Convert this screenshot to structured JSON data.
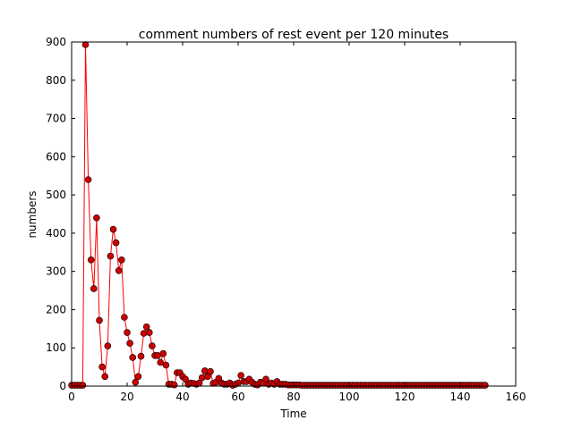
{
  "chart_data": {
    "type": "line",
    "title": "comment numbers of rest event per 120 minutes",
    "xlabel": "Time",
    "ylabel": "numbers",
    "xlim": [
      0,
      160
    ],
    "ylim": [
      0,
      900
    ],
    "xticks": [
      0,
      20,
      40,
      60,
      80,
      100,
      120,
      140,
      160
    ],
    "yticks": [
      0,
      100,
      200,
      300,
      400,
      500,
      600,
      700,
      800,
      900
    ],
    "grid": false,
    "line_color": "#ff0000",
    "marker_color": "#cc0000",
    "marker_edge_color": "#000000",
    "series": [
      {
        "x": [
          0,
          1,
          2,
          3,
          4,
          5,
          6,
          7,
          8,
          9,
          10,
          11,
          12,
          13,
          14,
          15,
          16,
          17,
          18,
          19,
          20,
          21,
          22,
          23,
          24,
          25,
          26,
          27,
          28,
          29,
          30,
          31,
          32,
          33,
          34,
          35,
          36,
          37,
          38,
          39,
          40,
          41,
          42,
          43,
          44,
          45,
          46,
          47,
          48,
          49,
          50,
          51,
          52,
          53,
          54,
          55,
          56,
          57,
          58,
          59,
          60,
          61,
          62,
          63,
          64,
          65,
          66,
          67,
          68,
          69,
          70,
          71,
          72,
          73,
          74,
          75,
          76,
          77,
          78,
          79,
          80,
          81,
          82,
          83,
          84,
          85,
          86,
          87,
          88,
          89,
          90,
          91,
          92,
          93,
          94,
          95,
          96,
          97,
          98,
          99,
          100,
          101,
          102,
          103,
          104,
          105,
          106,
          107,
          108,
          109,
          110,
          111,
          112,
          113,
          114,
          115,
          116,
          117,
          118,
          119,
          120,
          121,
          122,
          123,
          124,
          125,
          126,
          127,
          128,
          129,
          130,
          131,
          132,
          133,
          134,
          135,
          136,
          137,
          138,
          139,
          140,
          141,
          142,
          143,
          144,
          145,
          146,
          147,
          148,
          149
        ],
        "values": [
          2,
          2,
          2,
          2,
          2,
          893,
          540,
          330,
          255,
          440,
          172,
          50,
          25,
          105,
          340,
          410,
          375,
          302,
          330,
          180,
          140,
          112,
          75,
          10,
          25,
          78,
          138,
          155,
          140,
          105,
          80,
          80,
          62,
          85,
          55,
          5,
          5,
          3,
          35,
          35,
          25,
          18,
          5,
          8,
          7,
          5,
          8,
          22,
          40,
          25,
          38,
          7,
          10,
          20,
          8,
          5,
          5,
          8,
          2,
          5,
          8,
          28,
          12,
          12,
          18,
          10,
          5,
          3,
          10,
          8,
          18,
          5,
          8,
          5,
          12,
          5,
          5,
          5,
          3,
          3,
          3,
          3,
          3,
          2,
          2,
          2,
          2,
          2,
          2,
          2,
          2,
          2,
          2,
          2,
          2,
          2,
          2,
          2,
          2,
          2,
          2,
          2,
          2,
          2,
          2,
          2,
          2,
          2,
          2,
          2,
          2,
          2,
          2,
          2,
          2,
          2,
          2,
          2,
          2,
          2,
          2,
          2,
          2,
          2,
          2,
          2,
          2,
          2,
          2,
          2,
          2,
          2,
          2,
          2,
          2,
          2,
          2,
          2,
          2,
          2,
          2,
          2,
          2,
          2,
          2,
          2,
          2,
          2,
          2,
          2
        ]
      }
    ]
  }
}
